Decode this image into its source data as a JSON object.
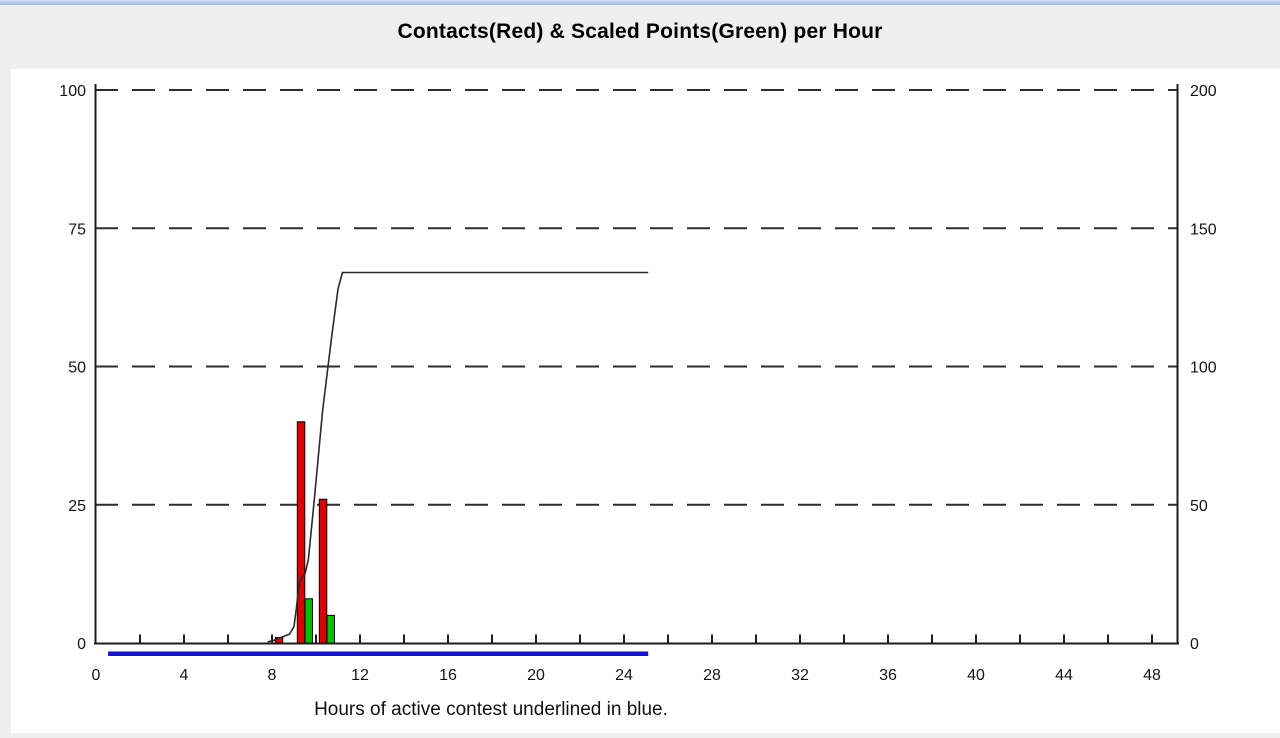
{
  "window": {
    "title": "Contacts(Red) & Scaled Points(Green) per Hour",
    "caption": "Hours of active contest underlined in blue."
  },
  "colors": {
    "page_background": "#efefef",
    "panel_background": "#ffffff",
    "top_border_blue": "#b4c9e9",
    "contacts_red": "#e10000",
    "points_green": "#00c300",
    "bar_outline": "#000000",
    "cumulative_line": "#2a2a2a",
    "gridline": "#2d2d2d",
    "axis": "#1c1c1c",
    "active_hours_blue": "#1212dd",
    "tick_label": "#141414"
  },
  "chart_data": {
    "type": "bar",
    "title": "Contacts(Red) & Scaled Points(Green) per Hour",
    "xlabel": "Hours of active contest underlined in blue.",
    "x_axis": {
      "unit": "hour",
      "tick_labels": [
        0,
        4,
        8,
        12,
        16,
        20,
        24,
        28,
        32,
        36,
        40,
        44,
        48
      ],
      "minor_tick_step": 2,
      "minor_tick_max": 48,
      "min": -0.25,
      "max": 49.2
    },
    "y_axis_left": {
      "series": "contacts_per_hour",
      "tick_labels": [
        0,
        25,
        50,
        75,
        100
      ],
      "min": 0,
      "max": 100
    },
    "y_axis_right": {
      "series": "scaled_points_per_hour",
      "tick_labels": [
        0,
        50,
        100,
        150,
        200
      ],
      "min": 0,
      "max": 200
    },
    "grid": "dashed-horizontal",
    "legend": {
      "contacts_color": "red",
      "scaled_points_color": "green"
    },
    "hourly": [
      {
        "hour": 8,
        "contacts": 1,
        "scaled_points": 0
      },
      {
        "hour": 9,
        "contacts": 40,
        "scaled_points": 16
      },
      {
        "hour": 10,
        "contacts": 26,
        "scaled_points": 10
      }
    ],
    "cumulative_contacts": {
      "total": 67,
      "points": [
        [
          7.8,
          0.2
        ],
        [
          8.1,
          0.5
        ],
        [
          8.4,
          1
        ],
        [
          8.8,
          1.6
        ],
        [
          9.0,
          3
        ],
        [
          9.1,
          6
        ],
        [
          9.2,
          9.5
        ],
        [
          9.3,
          11.5
        ],
        [
          9.5,
          12.5
        ],
        [
          9.65,
          15
        ],
        [
          9.9,
          25
        ],
        [
          10.3,
          42
        ],
        [
          10.7,
          55
        ],
        [
          11.0,
          64
        ],
        [
          11.2,
          67
        ],
        [
          25.1,
          67
        ]
      ]
    },
    "active_contest": {
      "start_hour": 0.55,
      "end_hour": 25.1
    }
  }
}
